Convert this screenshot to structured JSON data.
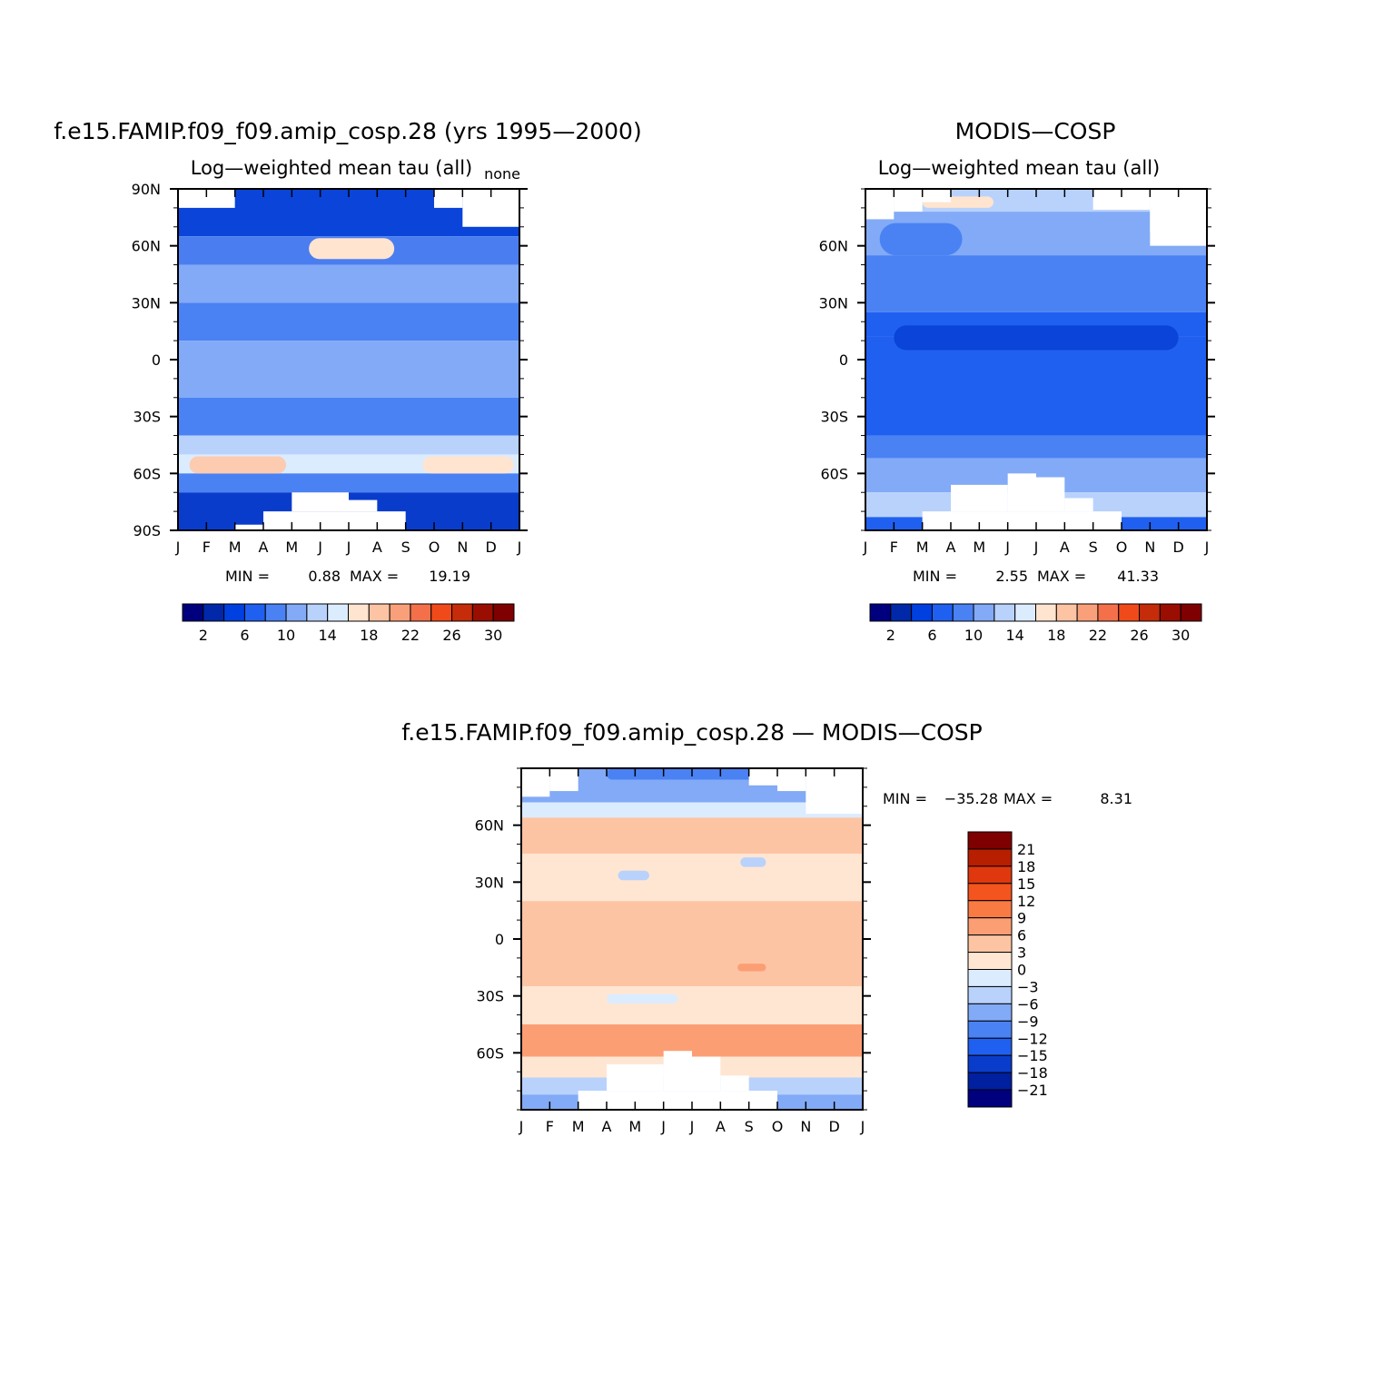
{
  "chart_data": [
    {
      "type": "heatmap",
      "panel": "model",
      "title": "f.e15.FAMIP.f09_f09.amip_cosp.28 (yrs 1995—2000)",
      "subtitle": "Log—weighted mean tau (all)",
      "corner_label": "none",
      "xlabel": "",
      "ylabel": "",
      "x_ticks": [
        "J",
        "F",
        "M",
        "A",
        "M",
        "J",
        "J",
        "A",
        "S",
        "O",
        "N",
        "D",
        "J"
      ],
      "y_ticks": [
        "90N",
        "60N",
        "30N",
        "0",
        "30S",
        "60S",
        "90S"
      ],
      "ylim": [
        -90,
        90
      ],
      "stats": {
        "min_label": "MIN =",
        "min": "0.88",
        "max_label": "MAX =",
        "max": "19.19"
      },
      "colorbar": {
        "orientation": "horizontal",
        "colors": [
          "#00007f",
          "#0028a8",
          "#0040e0",
          "#2060f0",
          "#4a82f4",
          "#82aaf6",
          "#b8d2fc",
          "#dcecff",
          "#ffe4cf",
          "#fdc4a4",
          "#f9a07a",
          "#f3704a",
          "#f04a1a",
          "#c42c0a",
          "#990e00",
          "#7f0000"
        ],
        "labels": [
          "2",
          "6",
          "10",
          "14",
          "18",
          "22",
          "26",
          "30"
        ]
      },
      "bands": [
        {
          "lat": [
            65,
            90
          ],
          "color": "#0a44d8"
        },
        {
          "lat": [
            50,
            65
          ],
          "color": "#4a7ef0"
        },
        {
          "lat": [
            30,
            50
          ],
          "color": "#82aaf6"
        },
        {
          "lat": [
            10,
            30
          ],
          "color": "#4a82f4"
        },
        {
          "lat": [
            -20,
            10
          ],
          "color": "#82aaf6"
        },
        {
          "lat": [
            -40,
            -20
          ],
          "color": "#4a82f4"
        },
        {
          "lat": [
            -50,
            -40
          ],
          "color": "#b8d2fc"
        },
        {
          "lat": [
            -60,
            -50
          ],
          "color": "#dcecff"
        },
        {
          "lat": [
            -70,
            -60
          ],
          "color": "#4a82f4"
        },
        {
          "lat": [
            -90,
            -70
          ],
          "color": "#0a3ccc"
        }
      ],
      "patches": [
        {
          "month": [
            4.6,
            7.6
          ],
          "lat": [
            53,
            64
          ],
          "color": "#ffe4cf"
        },
        {
          "month": [
            0.4,
            3.8
          ],
          "lat": [
            -60,
            -51
          ],
          "color": "#fdcbb0"
        },
        {
          "month": [
            8.6,
            11.8
          ],
          "lat": [
            -60,
            -51
          ],
          "color": "#ffe4cf"
        }
      ],
      "missing": [
        {
          "month": [
            0,
            2
          ],
          "lat": [
            80,
            90
          ]
        },
        {
          "month": [
            9,
            10
          ],
          "lat": [
            80,
            90
          ]
        },
        {
          "month": [
            10,
            12
          ],
          "lat": [
            70,
            90
          ]
        },
        {
          "month": [
            3,
            8
          ],
          "lat": [
            -90,
            -80
          ]
        },
        {
          "month": [
            4,
            6
          ],
          "lat": [
            -80,
            -70
          ]
        },
        {
          "month": [
            6,
            7
          ],
          "lat": [
            -80,
            -74
          ]
        },
        {
          "month": [
            2,
            4
          ],
          "lat": [
            -90,
            -87
          ]
        }
      ]
    },
    {
      "type": "heatmap",
      "panel": "observation",
      "title": "MODIS—COSP",
      "subtitle": "Log—weighted mean tau (all)",
      "xlabel": "",
      "ylabel": "",
      "x_ticks": [
        "J",
        "F",
        "M",
        "A",
        "M",
        "J",
        "J",
        "A",
        "S",
        "O",
        "N",
        "D",
        "J"
      ],
      "y_ticks": [
        "60N",
        "30N",
        "0",
        "30S",
        "60S"
      ],
      "ylim": [
        -90,
        90
      ],
      "stats": {
        "min_label": "MIN =",
        "min": "2.55",
        "max_label": "MAX =",
        "max": "41.33"
      },
      "colorbar": {
        "orientation": "horizontal",
        "colors": [
          "#00007f",
          "#0028a8",
          "#0040e0",
          "#2060f0",
          "#4a82f4",
          "#82aaf6",
          "#b8d2fc",
          "#dcecff",
          "#ffe4cf",
          "#fdc4a4",
          "#f9a07a",
          "#f3704a",
          "#f04a1a",
          "#c42c0a",
          "#990e00",
          "#7f0000"
        ],
        "labels": [
          "2",
          "6",
          "10",
          "14",
          "18",
          "22",
          "26",
          "30"
        ]
      },
      "bands": [
        {
          "lat": [
            78,
            90
          ],
          "color": "#b8d2fc"
        },
        {
          "lat": [
            55,
            78
          ],
          "color": "#82aaf6"
        },
        {
          "lat": [
            25,
            55
          ],
          "color": "#4a82f4"
        },
        {
          "lat": [
            12,
            25
          ],
          "color": "#2060f0"
        },
        {
          "lat": [
            -40,
            12
          ],
          "color": "#2060f0"
        },
        {
          "lat": [
            -52,
            -40
          ],
          "color": "#4a82f4"
        },
        {
          "lat": [
            -70,
            -52
          ],
          "color": "#82aaf6"
        },
        {
          "lat": [
            -83,
            -70
          ],
          "color": "#b8d2fc"
        },
        {
          "lat": [
            -90,
            -83
          ],
          "color": "#2060f0"
        }
      ],
      "patches": [
        {
          "month": [
            1,
            11
          ],
          "lat": [
            5,
            18
          ],
          "color": "#0a44d8"
        },
        {
          "month": [
            0.5,
            3.4
          ],
          "lat": [
            55,
            72
          ],
          "color": "#4a82f4"
        },
        {
          "month": [
            2,
            4.5
          ],
          "lat": [
            80,
            86
          ],
          "color": "#ffe4cf"
        }
      ],
      "missing": [
        {
          "month": [
            0,
            1
          ],
          "lat": [
            74,
            90
          ]
        },
        {
          "month": [
            1,
            2
          ],
          "lat": [
            78,
            90
          ]
        },
        {
          "month": [
            2,
            3
          ],
          "lat": [
            83,
            90
          ]
        },
        {
          "month": [
            8,
            10
          ],
          "lat": [
            79,
            90
          ]
        },
        {
          "month": [
            10,
            12
          ],
          "lat": [
            60,
            90
          ]
        },
        {
          "month": [
            10,
            11
          ],
          "lat": [
            67,
            90
          ]
        },
        {
          "month": [
            2,
            9
          ],
          "lat": [
            -90,
            -80
          ]
        },
        {
          "month": [
            3,
            5
          ],
          "lat": [
            -80,
            -66
          ]
        },
        {
          "month": [
            5,
            6
          ],
          "lat": [
            -80,
            -60
          ]
        },
        {
          "month": [
            6,
            7
          ],
          "lat": [
            -80,
            -62
          ]
        },
        {
          "month": [
            7,
            8
          ],
          "lat": [
            -80,
            -73
          ]
        }
      ]
    },
    {
      "type": "heatmap",
      "panel": "difference",
      "title": "f.e15.FAMIP.f09_f09.amip_cosp.28 — MODIS—COSP",
      "xlabel": "",
      "ylabel": "",
      "x_ticks": [
        "J",
        "F",
        "M",
        "A",
        "M",
        "J",
        "J",
        "A",
        "S",
        "O",
        "N",
        "D",
        "J"
      ],
      "y_ticks": [
        "60N",
        "30N",
        "0",
        "30S",
        "60S"
      ],
      "ylim": [
        -90,
        90
      ],
      "stats": {
        "min_label": "MIN =",
        "min": "−35.28",
        "max_label": "MAX =",
        "max": "8.31"
      },
      "colorbar": {
        "orientation": "vertical",
        "colors_top_to_bottom": [
          "#7f0000",
          "#b81e00",
          "#e0380e",
          "#f4551e",
          "#fa7a44",
          "#fc9e74",
          "#fdc4a4",
          "#ffe6d2",
          "#dcecff",
          "#b8d2fc",
          "#82aaf6",
          "#4a82f4",
          "#2060f0",
          "#0a3ccc",
          "#0020a0",
          "#00007f"
        ],
        "labels_top_to_bottom": [
          "21",
          "18",
          "15",
          "12",
          "9",
          "6",
          "3",
          "0",
          "−3",
          "−6",
          "−9",
          "−12",
          "−15",
          "−18",
          "−21"
        ]
      },
      "bands": [
        {
          "lat": [
            72,
            90
          ],
          "color": "#82aaf6"
        },
        {
          "lat": [
            64,
            72
          ],
          "color": "#dcecff"
        },
        {
          "lat": [
            45,
            64
          ],
          "color": "#fdc4a4"
        },
        {
          "lat": [
            20,
            45
          ],
          "color": "#ffe6d2"
        },
        {
          "lat": [
            -25,
            20
          ],
          "color": "#fdc4a4"
        },
        {
          "lat": [
            -45,
            -25
          ],
          "color": "#ffe6d2"
        },
        {
          "lat": [
            -62,
            -45
          ],
          "color": "#fc9e74"
        },
        {
          "lat": [
            -73,
            -62
          ],
          "color": "#ffe6d2"
        },
        {
          "lat": [
            -82,
            -73
          ],
          "color": "#b8d2fc"
        },
        {
          "lat": [
            -90,
            -82
          ],
          "color": "#82aaf6"
        }
      ],
      "patches": [
        {
          "month": [
            3,
            9
          ],
          "lat": [
            84,
            90
          ],
          "color": "#4a82f4"
        },
        {
          "month": [
            3.4,
            4.5
          ],
          "lat": [
            31,
            36
          ],
          "color": "#b8d2fc"
        },
        {
          "month": [
            7.7,
            8.6
          ],
          "lat": [
            38,
            43
          ],
          "color": "#b8d2fc"
        },
        {
          "month": [
            3,
            5.5
          ],
          "lat": [
            -34,
            -29
          ],
          "color": "#dcecff"
        },
        {
          "month": [
            7.6,
            8.6
          ],
          "lat": [
            -17,
            -13
          ],
          "color": "#fc9e74"
        }
      ],
      "missing": [
        {
          "month": [
            0,
            1
          ],
          "lat": [
            75,
            90
          ]
        },
        {
          "month": [
            1,
            2
          ],
          "lat": [
            78,
            90
          ]
        },
        {
          "month": [
            8,
            9
          ],
          "lat": [
            81,
            90
          ]
        },
        {
          "month": [
            9,
            10
          ],
          "lat": [
            78,
            90
          ]
        },
        {
          "month": [
            10,
            12
          ],
          "lat": [
            66,
            90
          ]
        },
        {
          "month": [
            2,
            9
          ],
          "lat": [
            -90,
            -80
          ]
        },
        {
          "month": [
            3,
            5
          ],
          "lat": [
            -80,
            -66
          ]
        },
        {
          "month": [
            5,
            6
          ],
          "lat": [
            -80,
            -59
          ]
        },
        {
          "month": [
            6,
            7
          ],
          "lat": [
            -80,
            -62
          ]
        },
        {
          "month": [
            7,
            8
          ],
          "lat": [
            -80,
            -72
          ]
        }
      ]
    }
  ]
}
